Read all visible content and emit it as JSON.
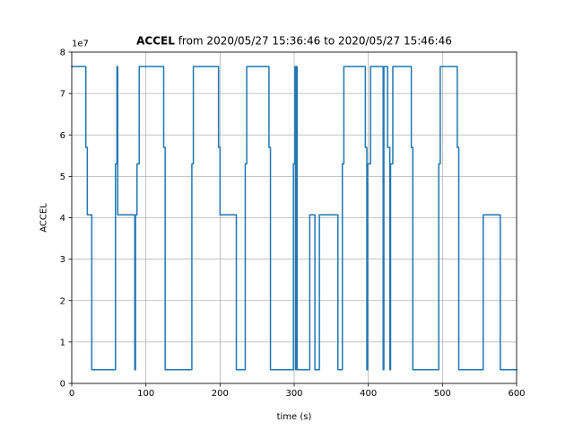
{
  "chart_data": {
    "type": "line",
    "title_bold": "ACCEL",
    "title_rest": " from 2020/05/27 15:36:46 to 2020/05/27 15:46:46",
    "xlabel": "time (s)",
    "ylabel": "ACCEL",
    "offset_text": "1e7",
    "xlim": [
      0,
      600
    ],
    "ylim": [
      0,
      8
    ],
    "xticks": [
      0,
      100,
      200,
      300,
      400,
      500,
      600
    ],
    "yticks": [
      0,
      1,
      2,
      3,
      4,
      5,
      6,
      7,
      8
    ],
    "grid": true,
    "line_color": "#1f77b4",
    "series": [
      {
        "step": true,
        "points": [
          [
            0,
            7.65
          ],
          [
            19,
            7.65
          ],
          [
            19,
            5.7
          ],
          [
            21,
            5.7
          ],
          [
            21,
            4.07
          ],
          [
            27,
            4.07
          ],
          [
            27,
            0.33
          ],
          [
            59,
            0.33
          ],
          [
            59,
            5.3
          ],
          [
            61,
            5.3
          ],
          [
            61,
            7.65
          ],
          [
            62,
            7.65
          ],
          [
            62,
            4.07
          ],
          [
            85,
            4.07
          ],
          [
            85,
            0.33
          ],
          [
            86,
            0.33
          ],
          [
            86,
            4.07
          ],
          [
            88,
            4.07
          ],
          [
            88,
            5.3
          ],
          [
            91,
            5.3
          ],
          [
            91,
            7.65
          ],
          [
            124,
            7.65
          ],
          [
            124,
            5.7
          ],
          [
            126,
            5.7
          ],
          [
            126,
            0.33
          ],
          [
            162,
            0.33
          ],
          [
            162,
            5.3
          ],
          [
            164,
            5.3
          ],
          [
            164,
            7.65
          ],
          [
            198,
            7.65
          ],
          [
            198,
            5.7
          ],
          [
            200,
            5.7
          ],
          [
            200,
            4.07
          ],
          [
            222,
            4.07
          ],
          [
            222,
            0.33
          ],
          [
            234,
            0.33
          ],
          [
            234,
            5.3
          ],
          [
            236,
            5.3
          ],
          [
            236,
            7.65
          ],
          [
            266,
            7.65
          ],
          [
            266,
            5.7
          ],
          [
            268,
            5.7
          ],
          [
            268,
            0.33
          ],
          [
            299,
            0.33
          ],
          [
            299,
            5.3
          ],
          [
            301,
            5.3
          ],
          [
            301,
            7.65
          ],
          [
            302,
            7.65
          ],
          [
            302,
            0.33
          ],
          [
            303,
            0.33
          ],
          [
            303,
            7.65
          ],
          [
            304,
            7.65
          ],
          [
            304,
            0.33
          ],
          [
            321,
            0.33
          ],
          [
            321,
            4.07
          ],
          [
            328,
            4.07
          ],
          [
            328,
            0.33
          ],
          [
            334,
            0.33
          ],
          [
            334,
            4.07
          ],
          [
            359,
            4.07
          ],
          [
            359,
            0.33
          ],
          [
            365,
            0.33
          ],
          [
            365,
            5.3
          ],
          [
            367,
            5.3
          ],
          [
            367,
            7.65
          ],
          [
            396,
            7.65
          ],
          [
            396,
            5.7
          ],
          [
            398,
            5.7
          ],
          [
            398,
            0.33
          ],
          [
            399,
            0.33
          ],
          [
            399,
            5.3
          ],
          [
            403,
            5.3
          ],
          [
            403,
            7.65
          ],
          [
            420,
            7.65
          ],
          [
            420,
            0.33
          ],
          [
            421,
            0.33
          ],
          [
            421,
            7.65
          ],
          [
            426,
            7.65
          ],
          [
            426,
            5.7
          ],
          [
            429,
            5.7
          ],
          [
            429,
            0.33
          ],
          [
            430,
            0.33
          ],
          [
            430,
            5.3
          ],
          [
            433,
            5.3
          ],
          [
            433,
            7.65
          ],
          [
            458,
            7.65
          ],
          [
            458,
            5.7
          ],
          [
            460,
            5.7
          ],
          [
            460,
            0.33
          ],
          [
            495,
            0.33
          ],
          [
            495,
            5.3
          ],
          [
            497,
            5.3
          ],
          [
            497,
            7.65
          ],
          [
            520,
            7.65
          ],
          [
            520,
            5.7
          ],
          [
            522,
            5.7
          ],
          [
            522,
            0.33
          ],
          [
            555,
            0.33
          ],
          [
            555,
            4.07
          ],
          [
            578,
            4.07
          ],
          [
            578,
            0.33
          ],
          [
            600,
            0.33
          ]
        ]
      }
    ]
  }
}
